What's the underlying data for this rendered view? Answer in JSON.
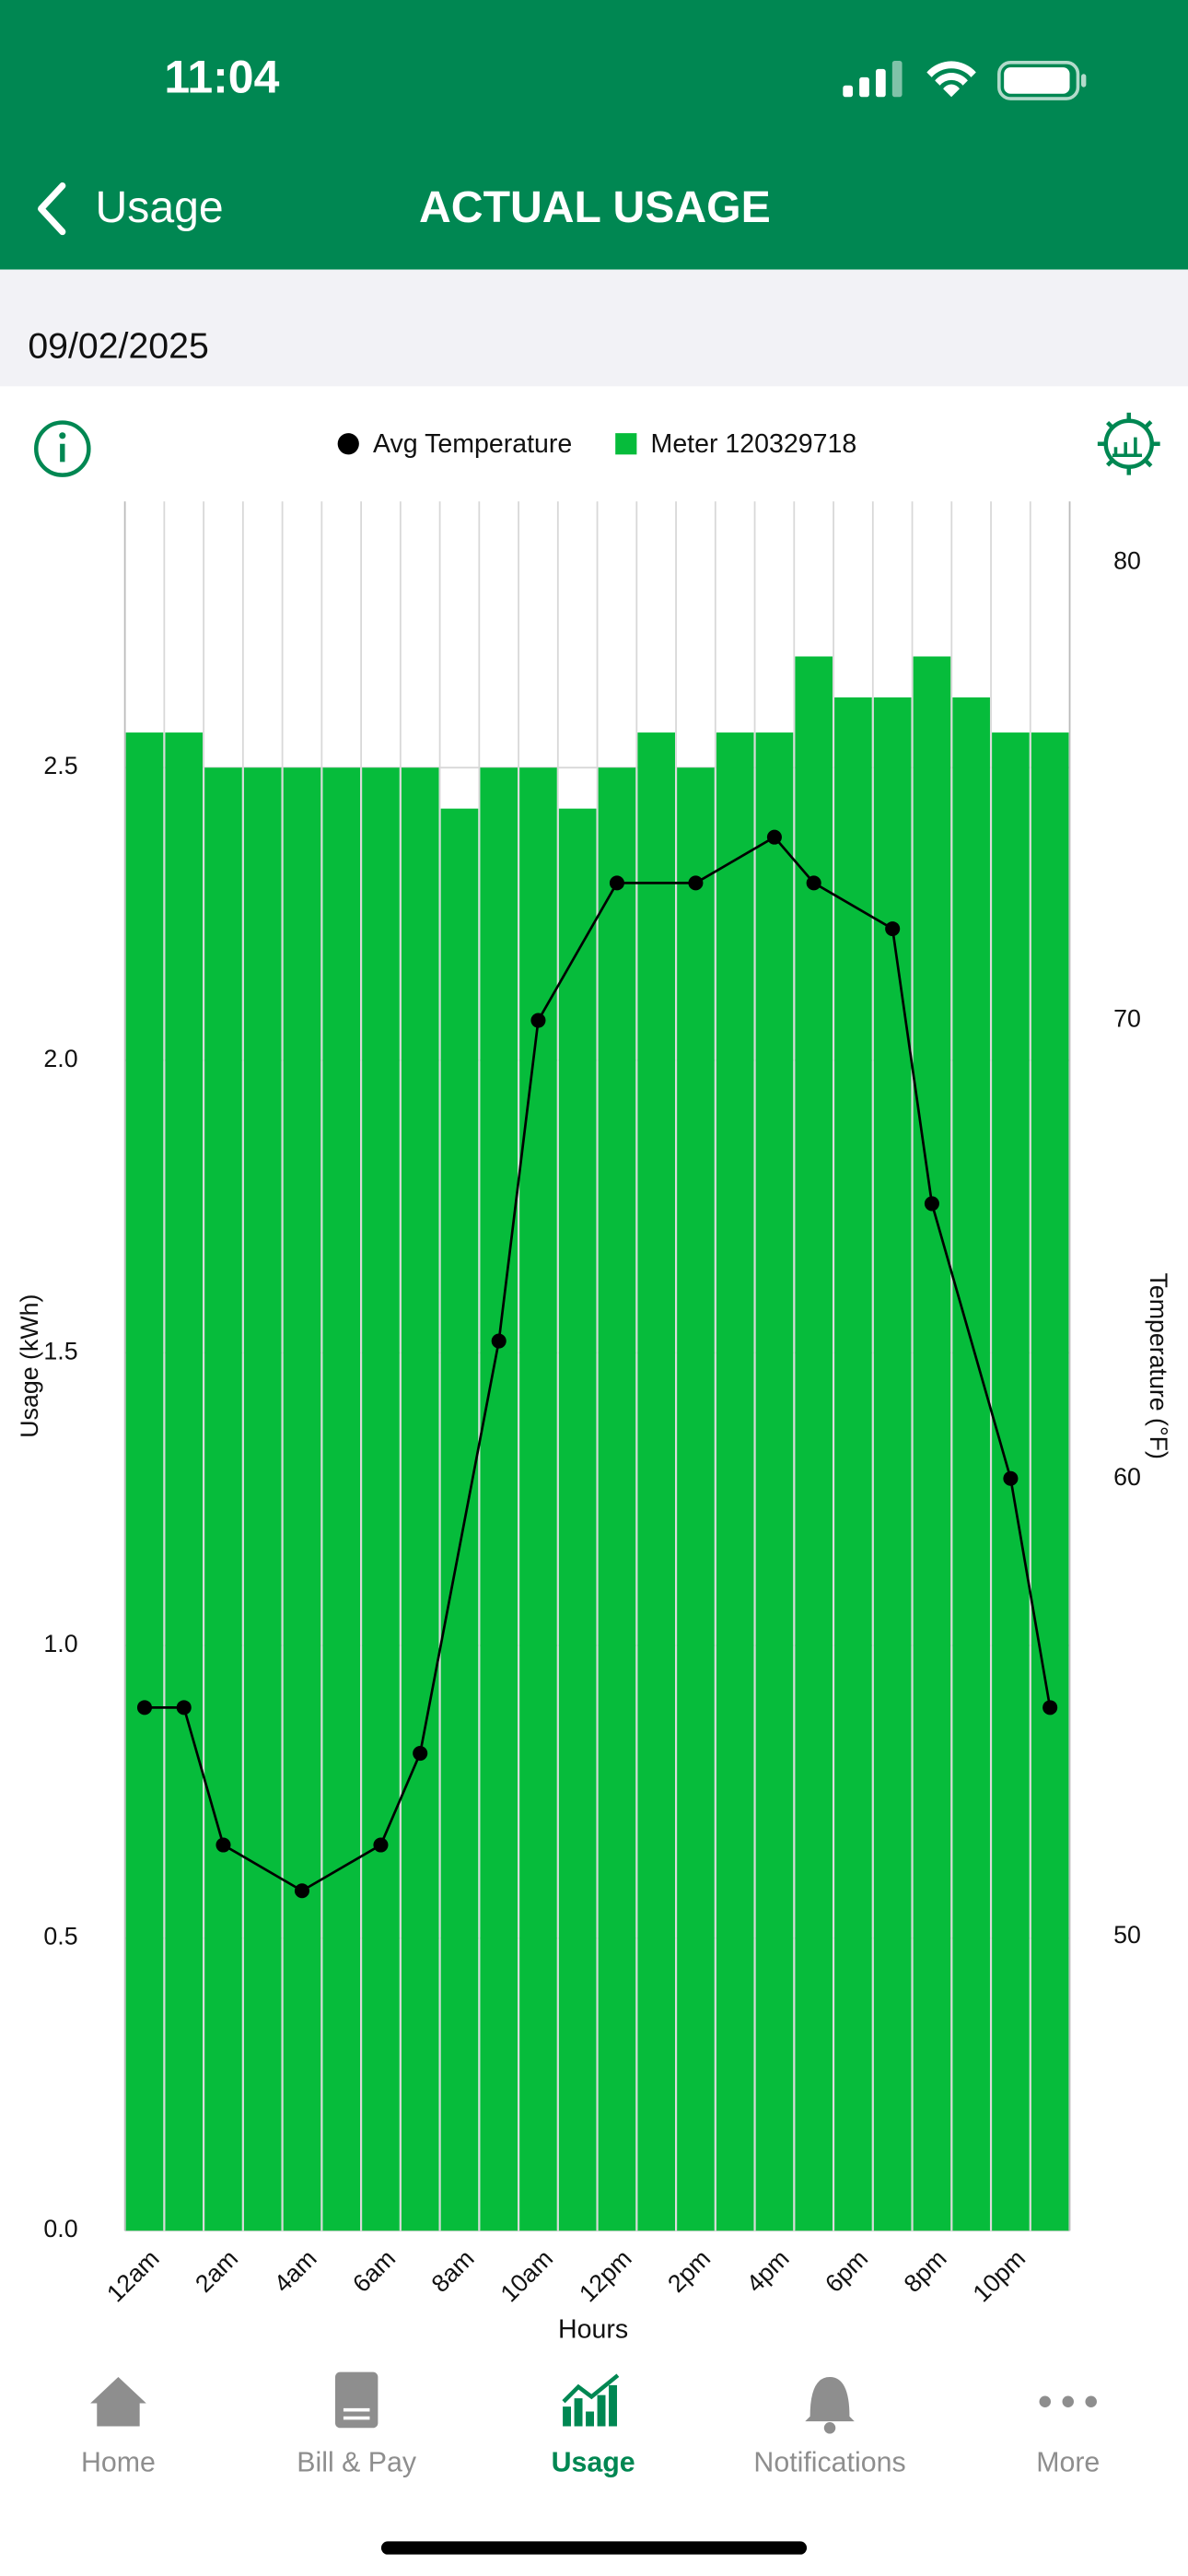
{
  "status": {
    "time": "11:04"
  },
  "header": {
    "back": "Usage",
    "title": "ACTUAL USAGE"
  },
  "date": "09/02/2025",
  "chart_data": {
    "type": "bar",
    "categories": [
      "12am",
      null,
      "2am",
      null,
      "4am",
      null,
      "6am",
      null,
      "8am",
      null,
      "10am",
      null,
      "12pm",
      null,
      "2pm",
      null,
      "4pm",
      null,
      "6pm",
      null,
      "8pm",
      null,
      "10pm",
      null
    ],
    "series": [
      {
        "name": "Avg Temperature",
        "type": "line",
        "axis": "y2",
        "color": "#000000",
        "values": [
          55,
          55,
          52,
          null,
          51,
          null,
          52,
          54,
          null,
          63,
          70,
          null,
          73,
          null,
          73,
          null,
          74,
          73,
          null,
          72,
          66,
          null,
          60,
          55
        ]
      },
      {
        "name": "Meter 120329718",
        "type": "bar",
        "color": "#06bc3b",
        "values": [
          2.56,
          2.56,
          2.5,
          2.5,
          2.5,
          2.5,
          2.5,
          2.5,
          2.43,
          2.5,
          2.5,
          2.43,
          2.5,
          2.56,
          2.5,
          2.56,
          2.56,
          2.69,
          2.62,
          2.62,
          2.69,
          2.62,
          2.56,
          2.56
        ]
      }
    ],
    "span_gaps": true,
    "ylabel": "Usage (kWh)",
    "y2label": "Temperature (°F)",
    "xlabel": "Hours",
    "ylim": [
      0,
      2.955
    ],
    "yticks": [
      {
        "value": 0,
        "label": "0.0"
      },
      0.5,
      {
        "value": 1,
        "label": "1.0"
      },
      1.5,
      {
        "value": 2,
        "label": "2.0"
      },
      2.5
    ],
    "y2lim": [
      43.58,
      81.33
    ],
    "y2ticks": [
      50,
      60,
      70,
      80
    ],
    "grid": true,
    "legend": "top"
  },
  "tabs": [
    "Home",
    "Bill & Pay",
    "Usage",
    "Notifications",
    "More"
  ],
  "active_tab": "Usage"
}
